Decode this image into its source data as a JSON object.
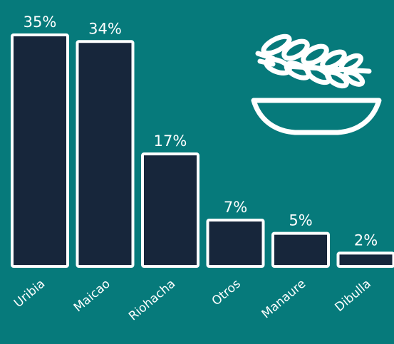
{
  "colors": {
    "background": "#067a7b",
    "bar_fill": "#17263b",
    "bar_stroke": "#ffffff",
    "text": "#ffffff",
    "icon": "#ffffff"
  },
  "icon": {
    "name": "grain-bowl-icon"
  },
  "chart_data": {
    "type": "bar",
    "categories": [
      "Uribia",
      "Maicao",
      "Riohacha",
      "Otros",
      "Manaure",
      "Dibulla"
    ],
    "values": [
      35,
      34,
      17,
      7,
      5,
      2
    ],
    "value_labels": [
      "35%",
      "34%",
      "17%",
      "7%",
      "5%",
      "2%"
    ],
    "unit": "%",
    "ylim": [
      0,
      35
    ],
    "grid": false,
    "legend": "none"
  }
}
